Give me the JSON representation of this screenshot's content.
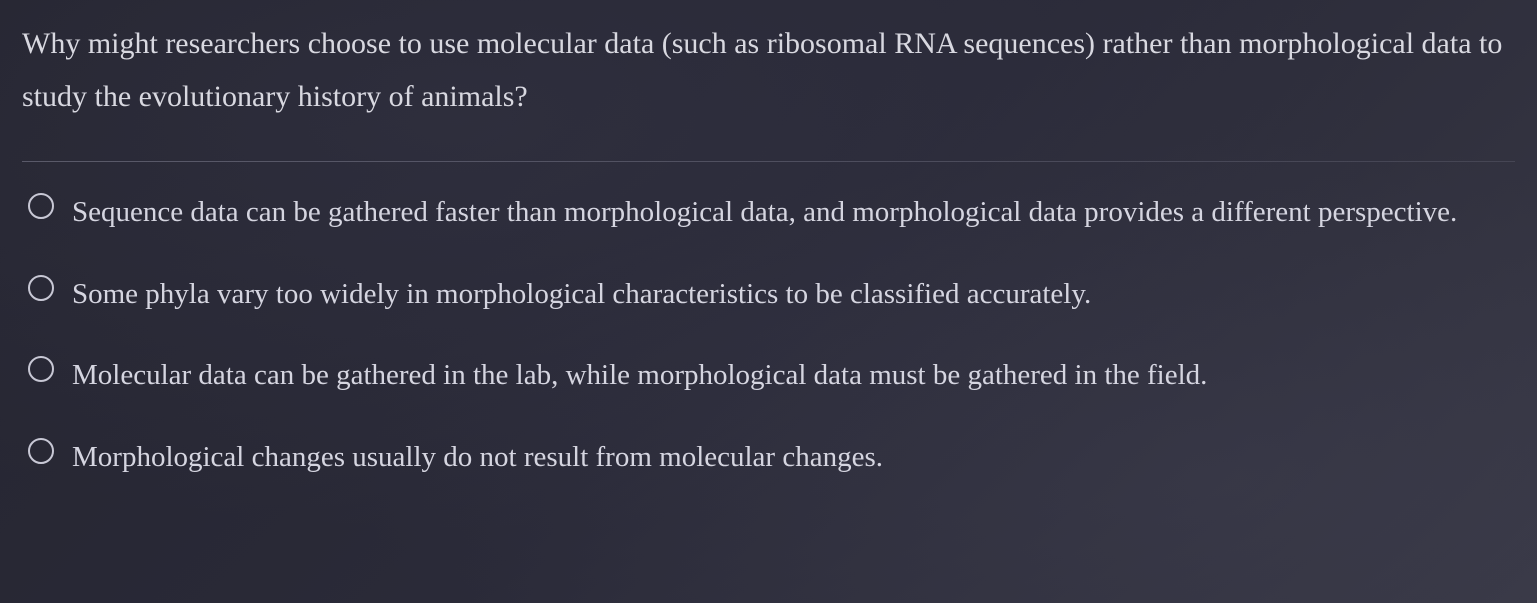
{
  "question": {
    "text": "Why might researchers choose to use molecular data (such as ribosomal RNA sequences) rather than morphological data to study the evolutionary history of animals?"
  },
  "options": [
    {
      "text": "Sequence data can be gathered faster than morphological data, and morphological data provides a different perspective."
    },
    {
      "text": "Some phyla vary too widely in morphological characteristics to be classified accurately."
    },
    {
      "text": "Molecular data can be gathered in the lab, while morphological data must be gathered in the field."
    },
    {
      "text": "Morphological changes usually do not result from molecular changes."
    }
  ],
  "styling": {
    "background_gradient_start": "#252530",
    "background_gradient_end": "#383845",
    "text_color": "#d8d8e0",
    "divider_color": "#b4b4c8",
    "radio_border_color": "#c8c8d5",
    "font_family": "Georgia, serif",
    "question_fontsize": 30,
    "option_fontsize": 29
  }
}
